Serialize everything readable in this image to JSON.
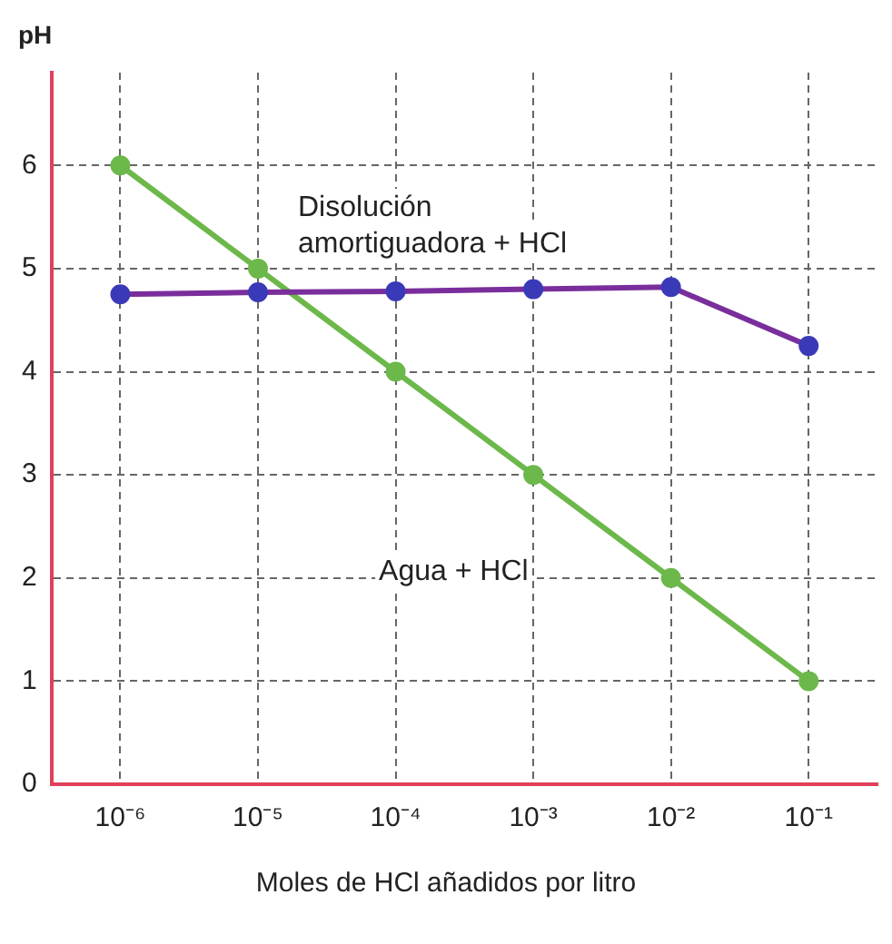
{
  "chart_data": {
    "type": "line",
    "ylabel": "pH",
    "xlabel": "Moles de HCl añadidos por litro",
    "categories": [
      "10⁻⁶",
      "10⁻⁵",
      "10⁻⁴",
      "10⁻³",
      "10⁻²",
      "10⁻¹"
    ],
    "series": [
      {
        "name": "Disolución amortiguadora + HCl",
        "color": "#7a2e9c",
        "values": [
          4.75,
          4.77,
          4.78,
          4.8,
          4.82,
          4.25
        ]
      },
      {
        "name": "Agua + HCl",
        "color": "#6cb84a",
        "values": [
          6,
          5,
          4,
          3,
          2,
          1
        ]
      }
    ],
    "ylim": [
      0,
      6.9
    ],
    "yticks": [
      0,
      1,
      2,
      3,
      4,
      5,
      6
    ],
    "grid": true,
    "legend": false,
    "marker": "circle",
    "line_style": "solid"
  }
}
